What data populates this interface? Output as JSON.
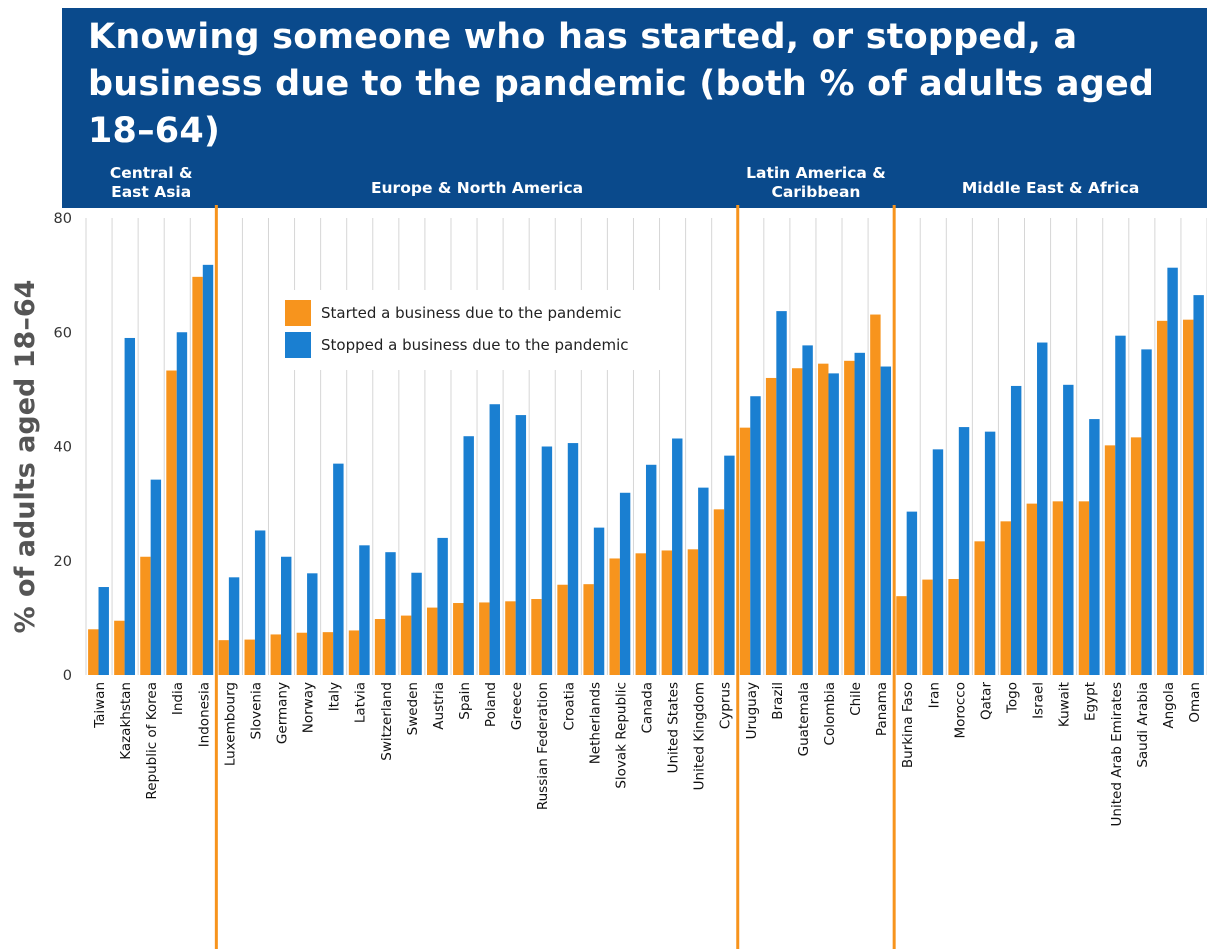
{
  "chart_data": {
    "type": "bar",
    "title": "Knowing someone who has started, or stopped, a business due to the pandemic (both % of adults aged 18–64)",
    "ylabel": "% of adults aged 18–64",
    "xlabel": "",
    "ylim": [
      0,
      80
    ],
    "yticks": [
      0,
      20,
      40,
      60,
      80
    ],
    "grid": "vertical",
    "legend_placement": "upper-left inside plot",
    "categories": [
      "Taiwan",
      "Kazakhstan",
      "Republic of Korea",
      "India",
      "Indonesia",
      "Luxembourg",
      "Slovenia",
      "Germany",
      "Norway",
      "Italy",
      "Latvia",
      "Switzerland",
      "Sweden",
      "Austria",
      "Spain",
      "Poland",
      "Greece",
      "Russian Federation",
      "Croatia",
      "Netherlands",
      "Slovak Republic",
      "Canada",
      "United States",
      "United Kingdom",
      "Cyprus",
      "Uruguay",
      "Brazil",
      "Guatemala",
      "Colombia",
      "Chile",
      "Panama",
      "Burkina Faso",
      "Iran",
      "Morocco",
      "Qatar",
      "Togo",
      "Israel",
      "Kuwait",
      "Egypt",
      "United Arab Emirates",
      "Saudi Arabia",
      "Angola",
      "Oman"
    ],
    "series": [
      {
        "name": "Started a business due to the pandemic",
        "color": "#f7941d",
        "values": [
          8,
          9.5,
          20.7,
          53.3,
          69.7,
          6.1,
          6.2,
          7.1,
          7.4,
          7.5,
          7.8,
          9.8,
          10.4,
          11.8,
          12.6,
          12.7,
          12.9,
          13.3,
          15.8,
          15.9,
          20.4,
          21.3,
          21.8,
          22,
          29,
          43.3,
          52,
          53.7,
          54.5,
          55,
          63.1,
          13.8,
          16.7,
          16.8,
          23.4,
          26.9,
          30,
          30.4,
          30.4,
          40.2,
          41.6,
          62,
          62.2
        ]
      },
      {
        "name": "Stopped a business due to the pandemic",
        "color": "#1a7fd1",
        "values": [
          15.4,
          59,
          34.2,
          60,
          71.8,
          17.1,
          25.3,
          20.7,
          17.8,
          37,
          22.7,
          21.5,
          17.9,
          24,
          41.8,
          47.4,
          45.5,
          40,
          40.6,
          25.8,
          31.9,
          36.8,
          41.4,
          32.8,
          38.4,
          48.8,
          63.7,
          57.7,
          52.8,
          56.4,
          54,
          28.6,
          39.5,
          43.4,
          42.6,
          50.6,
          58.2,
          50.8,
          44.8,
          59.4,
          57,
          71.3,
          66.5
        ]
      }
    ],
    "regions": [
      {
        "label_lines": [
          "Central &",
          "East Asia"
        ],
        "count": 5
      },
      {
        "label_lines": [
          "Europe & North America"
        ],
        "count": 20
      },
      {
        "label_lines": [
          "Latin America &",
          "Caribbean"
        ],
        "count": 6
      },
      {
        "label_lines": [
          "Middle East & Africa"
        ],
        "count": 12
      }
    ],
    "divider_color": "#f7941d",
    "banner_color": "#0a4a8c"
  }
}
